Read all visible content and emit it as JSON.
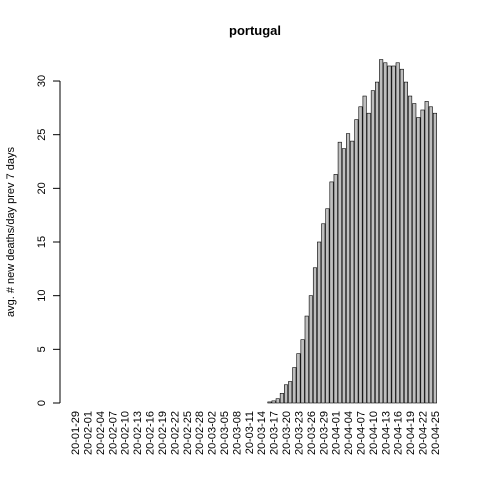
{
  "chart_data": {
    "type": "bar",
    "title": "portugal",
    "y_label": "avg. # new deaths/day prev  7  days",
    "categories": [
      "20-01-29",
      null,
      null,
      "20-02-01",
      null,
      null,
      "20-02-04",
      null,
      null,
      "20-02-07",
      null,
      null,
      "20-02-10",
      null,
      null,
      "20-02-13",
      null,
      null,
      "20-02-16",
      null,
      null,
      "20-02-19",
      null,
      null,
      "20-02-22",
      null,
      null,
      "20-02-25",
      null,
      null,
      "20-02-28",
      null,
      null,
      "20-03-02",
      null,
      null,
      "20-03-05",
      null,
      null,
      "20-03-08",
      null,
      null,
      "20-03-11",
      null,
      null,
      "20-03-14",
      null,
      null,
      "20-03-17",
      null,
      null,
      "20-03-20",
      null,
      null,
      "20-03-23",
      null,
      null,
      "20-03-26",
      null,
      null,
      "20-03-29",
      null,
      null,
      "20-04-01",
      null,
      null,
      "20-04-04",
      null,
      null,
      "20-04-07",
      null,
      null,
      "20-04-10",
      null,
      null,
      "20-04-13",
      null,
      null,
      "20-04-16",
      null,
      null,
      "20-04-19",
      null,
      null,
      "20-04-22",
      null,
      null,
      "20-04-25"
    ],
    "values": [
      0,
      0,
      0,
      0,
      0,
      0,
      0,
      0,
      0,
      0,
      0,
      0,
      0,
      0,
      0,
      0,
      0,
      0,
      0,
      0,
      0,
      0,
      0,
      0,
      0,
      0,
      0,
      0,
      0,
      0,
      0,
      0,
      0,
      0,
      0,
      0,
      0,
      0,
      0,
      0,
      0,
      0,
      0,
      0,
      0,
      0,
      0,
      0.1,
      0.2,
      0.4,
      0.9,
      1.7,
      2.0,
      3.3,
      4.6,
      5.9,
      8.1,
      10.0,
      12.6,
      15.0,
      16.7,
      18.1,
      20.6,
      21.3,
      24.3,
      23.7,
      25.1,
      24.4,
      26.4,
      27.6,
      28.6,
      27.0,
      29.1,
      29.9,
      32.0,
      31.7,
      31.4,
      31.4,
      31.7,
      31.1,
      29.9,
      28.6,
      27.9,
      26.6,
      27.3,
      28.1,
      27.6,
      27.0
    ],
    "color": "#bebebe",
    "ylim": [
      0,
      33.3
    ],
    "yticks": [
      0,
      5,
      10,
      15,
      20,
      25,
      30
    ]
  }
}
